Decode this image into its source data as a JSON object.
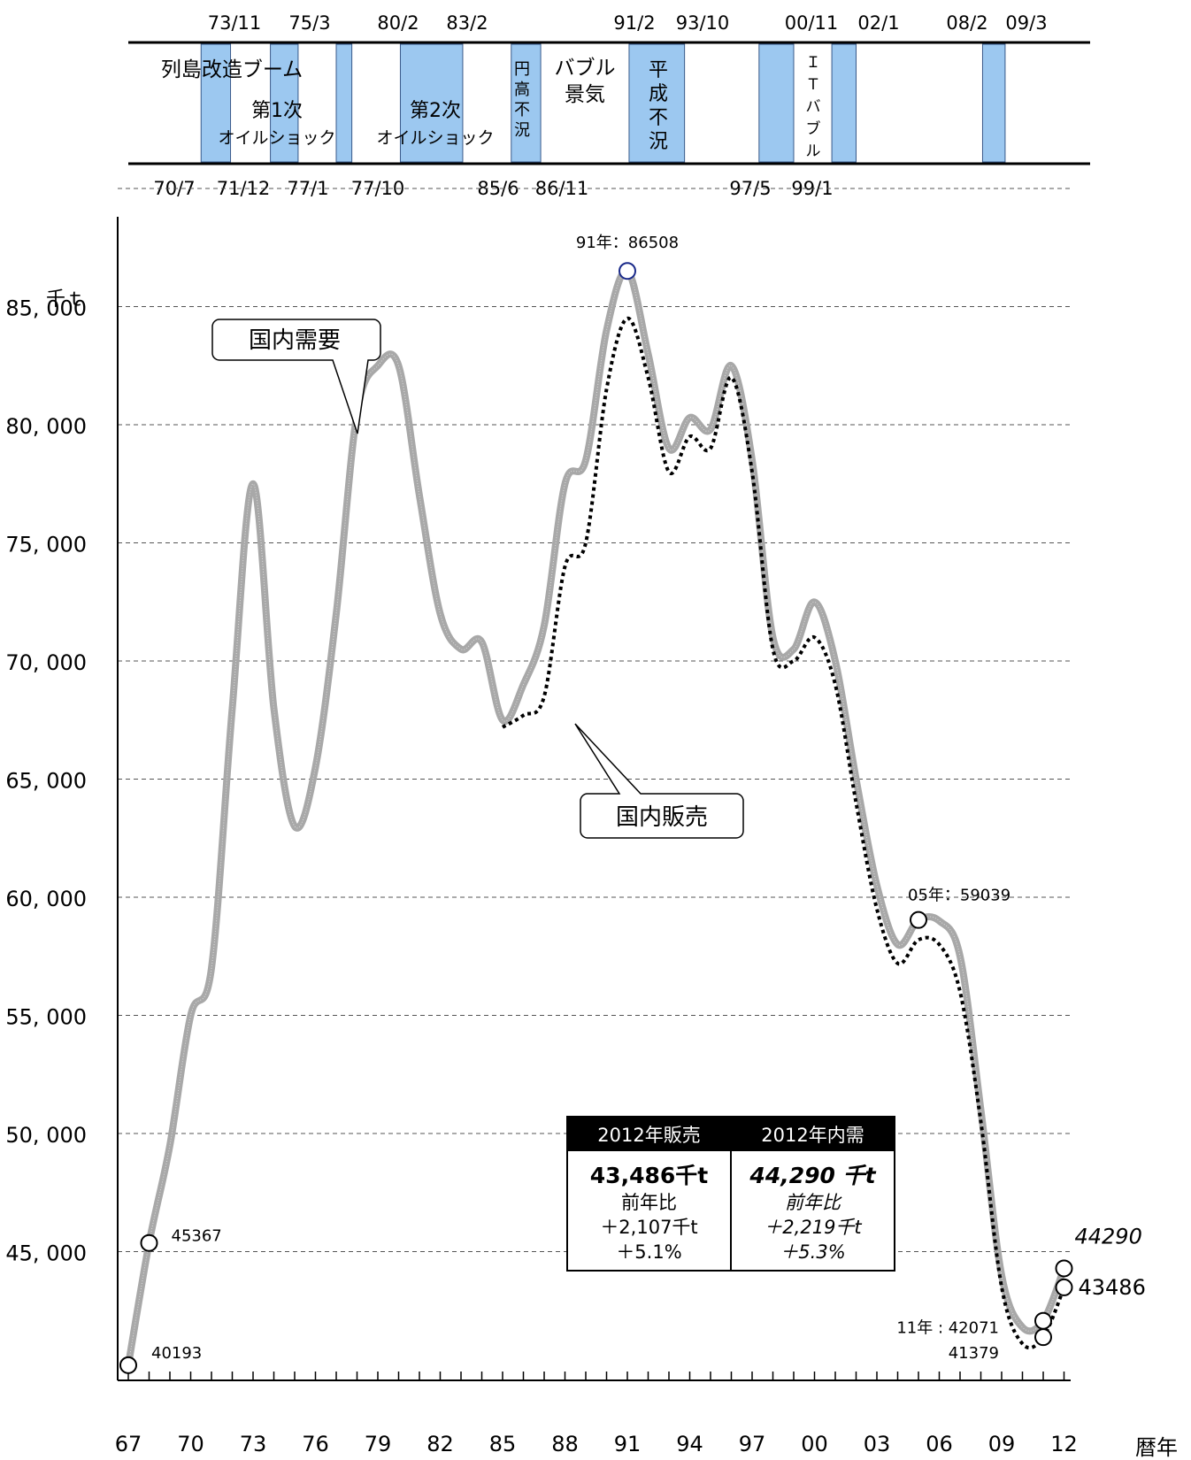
{
  "chart_data": {
    "type": "line",
    "y_unit_label": "千ｔ",
    "x_unit_label": "暦年",
    "xlim": [
      1967,
      2012
    ],
    "ylim": [
      40000,
      90000
    ],
    "y_ticks": [
      {
        "value": 45000,
        "label": "45, 000"
      },
      {
        "value": 50000,
        "label": "50, 000"
      },
      {
        "value": 55000,
        "label": "55, 000"
      },
      {
        "value": 60000,
        "label": "60, 000"
      },
      {
        "value": 65000,
        "label": "65, 000"
      },
      {
        "value": 70000,
        "label": "70, 000"
      },
      {
        "value": 75000,
        "label": "75, 000"
      },
      {
        "value": 80000,
        "label": "80, 000"
      },
      {
        "value": 85000,
        "label": "85, 000"
      }
    ],
    "x_ticks": [
      {
        "value": 1967,
        "label": "67"
      },
      {
        "value": 1970,
        "label": "70"
      },
      {
        "value": 1973,
        "label": "73"
      },
      {
        "value": 1976,
        "label": "76"
      },
      {
        "value": 1979,
        "label": "79"
      },
      {
        "value": 1982,
        "label": "82"
      },
      {
        "value": 1985,
        "label": "85"
      },
      {
        "value": 1988,
        "label": "88"
      },
      {
        "value": 1991,
        "label": "91"
      },
      {
        "value": 1994,
        "label": "94"
      },
      {
        "value": 1997,
        "label": "97"
      },
      {
        "value": 2000,
        "label": "00"
      },
      {
        "value": 2003,
        "label": "03"
      },
      {
        "value": 2006,
        "label": "06"
      },
      {
        "value": 2009,
        "label": "09"
      },
      {
        "value": 2012,
        "label": "12"
      }
    ],
    "grid": true,
    "series": [
      {
        "name": "国内需要",
        "color": "#a8a8a8",
        "style": "thick-solid",
        "x": [
          1967,
          1968,
          1969,
          1970,
          1971,
          1972,
          1973,
          1974,
          1975,
          1976,
          1977,
          1978,
          1979,
          1980,
          1981,
          1982,
          1983,
          1984,
          1985,
          1986,
          1987,
          1988,
          1989,
          1990,
          1991,
          1992,
          1993,
          1994,
          1995,
          1996,
          1997,
          1998,
          1999,
          2000,
          2001,
          2002,
          2003,
          2004,
          2005,
          2006,
          2007,
          2008,
          2009,
          2010,
          2011,
          2012
        ],
        "y": [
          40193,
          45367,
          49500,
          55000,
          57000,
          68000,
          77500,
          68000,
          63000,
          65500,
          72000,
          80500,
          82500,
          82500,
          77000,
          72000,
          70500,
          70800,
          67500,
          69000,
          71500,
          77500,
          78500,
          84000,
          86508,
          83000,
          79000,
          80300,
          79800,
          82500,
          78500,
          71000,
          70500,
          72500,
          70000,
          65000,
          60500,
          58000,
          59039,
          59000,
          57500,
          51000,
          44000,
          41800,
          42071,
          44290
        ]
      },
      {
        "name": "国内販売",
        "color": "#000000",
        "style": "dotted",
        "x": [
          1985,
          1986,
          1987,
          1988,
          1989,
          1990,
          1991,
          1992,
          1993,
          1994,
          1995,
          1996,
          1997,
          1998,
          1999,
          2000,
          2001,
          2002,
          2003,
          2004,
          2005,
          2006,
          2007,
          2008,
          2009,
          2010,
          2011,
          2012
        ],
        "y": [
          67200,
          67700,
          68500,
          74000,
          75000,
          81500,
          84500,
          82000,
          78000,
          79500,
          79000,
          82000,
          78000,
          70500,
          70000,
          71000,
          69000,
          64000,
          59500,
          57200,
          58200,
          58000,
          56000,
          50500,
          43500,
          41100,
          41379,
          43486
        ]
      }
    ],
    "point_labels": [
      {
        "text": "40193",
        "x": 1967,
        "y": 40193
      },
      {
        "text": "45367",
        "x": 1968,
        "y": 45367
      },
      {
        "text": "91年：86508",
        "x": 1991,
        "y": 86508
      },
      {
        "text": "05年：59039",
        "x": 2005,
        "y": 59039
      },
      {
        "text": "11年 : 42071",
        "x": 2011,
        "y": 42071
      },
      {
        "text": "41379",
        "x": 2011,
        "y": 41379
      },
      {
        "text": "44290",
        "x": 2012,
        "y": 44290
      },
      {
        "text": "43486",
        "x": 2012,
        "y": 43486
      }
    ],
    "callouts": [
      {
        "text": "国内需要",
        "series": "国内需要"
      },
      {
        "text": "国内販売",
        "series": "国内販売"
      }
    ],
    "summary_box": {
      "sales": {
        "header": "2012年販売",
        "value": "43,486千t",
        "line1": "前年比",
        "line2": "＋2,107千t",
        "line3": "＋5.1%"
      },
      "demand": {
        "header": "2012年内需",
        "value": "44,290 千t",
        "line1": "前年比",
        "line2": "＋2,219千t",
        "line3": "＋5.3%"
      }
    },
    "economic_timeline": {
      "top_dates": [
        "73/11",
        "75/3",
        "80/2",
        "83/2",
        "91/2",
        "93/10",
        "00/11",
        "02/1",
        "08/2",
        "09/3"
      ],
      "bottom_dates": [
        "70/7",
        "71/12",
        "77/1",
        "77/10",
        "85/6",
        "86/11",
        "97/5",
        "99/1"
      ],
      "recession_periods": [
        {
          "start": "70/7",
          "end": "71/12"
        },
        {
          "start": "73/11",
          "end": "75/3"
        },
        {
          "start": "77/1",
          "end": "77/10"
        },
        {
          "start": "80/2",
          "end": "83/2"
        },
        {
          "start": "85/6",
          "end": "86/11"
        },
        {
          "start": "91/2",
          "end": "93/10"
        },
        {
          "start": "97/5",
          "end": "99/1"
        },
        {
          "start": "00/11",
          "end": "02/1"
        },
        {
          "start": "08/2",
          "end": "09/3"
        }
      ],
      "period_labels": [
        "列島改造ブーム",
        "第1次",
        "オイルショック",
        "第2次",
        "オイルショック",
        "円高不況",
        "バブル景気",
        "平成不況",
        "ＩＴバブル"
      ],
      "recession_color": "#9cc8f0"
    }
  }
}
